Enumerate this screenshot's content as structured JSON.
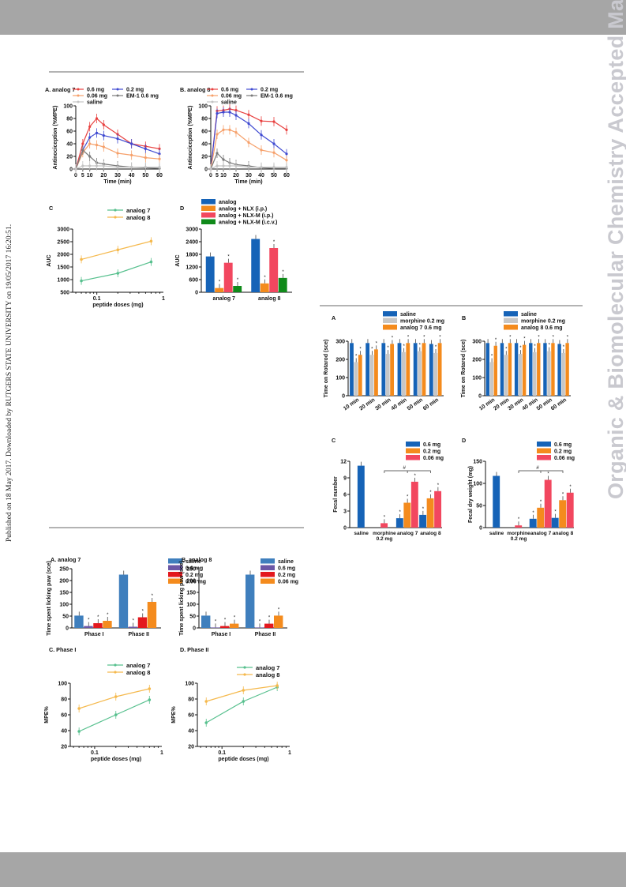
{
  "side_note": "Published on 18 May 2017. Downloaded by RUTGERS STATE UNIVERSITY on 19/05/2017 16:20:51.",
  "watermark": "Organic & Biomolecular Chemistry Accepted Manuscript",
  "colors": {
    "c06": "#e8403f",
    "c02": "#3e49d1",
    "c006": "#f6a06a",
    "cem1": "#7a7a7a",
    "csal": "#c4c4c4",
    "green": "#57c08e",
    "yellow": "#f5b94d",
    "blue": "#1663b7",
    "orange": "#f48b1d",
    "pink": "#f2475f",
    "dkgreen": "#108a1a",
    "gray": "#c7c7c7",
    "purple": "#6b57a6",
    "red": "#e3181e",
    "steel": "#3f7fbd"
  },
  "chart_data": [
    {
      "id": "figA1",
      "type": "line",
      "title": "A. analog 7",
      "xlabel": "Time (min)",
      "ylabel": "Antinociception (%MPE)",
      "xlim": [
        0,
        60
      ],
      "ylim": [
        0,
        100
      ],
      "xticks": [
        0,
        5,
        10,
        20,
        30,
        40,
        50,
        60
      ],
      "yticks": [
        0,
        20,
        40,
        60,
        80,
        100
      ],
      "legend": [
        "0.6   mg",
        "0.2   mg",
        "0.06 mg",
        "EM-1 0.6 mg",
        "saline"
      ],
      "x": [
        0,
        5,
        10,
        15,
        20,
        30,
        40,
        50,
        60
      ],
      "series": [
        {
          "name": "0.6   mg",
          "values": [
            0,
            40,
            67,
            80,
            70,
            55,
            40,
            36,
            32
          ]
        },
        {
          "name": "0.2   mg",
          "values": [
            0,
            30,
            50,
            57,
            53,
            48,
            40,
            32,
            24
          ]
        },
        {
          "name": "0.06 mg",
          "values": [
            0,
            26,
            40,
            38,
            35,
            25,
            22,
            18,
            16
          ]
        },
        {
          "name": "EM-1 0.6 mg",
          "values": [
            0,
            30,
            20,
            10,
            8,
            5,
            3,
            2,
            1
          ]
        },
        {
          "name": "saline",
          "values": [
            0,
            5,
            5,
            5,
            5,
            3,
            3,
            3,
            3
          ]
        }
      ]
    },
    {
      "id": "figB1",
      "type": "line",
      "title": "B. analog 8",
      "xlabel": "Time (min)",
      "ylabel": "Antinociception (%MPE)",
      "xlim": [
        0,
        60
      ],
      "ylim": [
        0,
        100
      ],
      "xticks": [
        0,
        5,
        10,
        20,
        30,
        40,
        50,
        60
      ],
      "yticks": [
        0,
        20,
        40,
        60,
        80,
        100
      ],
      "legend": [
        "0.6   mg",
        "0.2   mg",
        "0.06 mg",
        "EM-1 0.6 mg",
        "saline"
      ],
      "x": [
        0,
        5,
        10,
        15,
        20,
        30,
        40,
        50,
        60
      ],
      "series": [
        {
          "name": "0.6   mg",
          "values": [
            0,
            92,
            93,
            95,
            93,
            86,
            76,
            75,
            62
          ]
        },
        {
          "name": "0.2   mg",
          "values": [
            0,
            88,
            90,
            90,
            85,
            72,
            54,
            40,
            24
          ]
        },
        {
          "name": "0.06 mg",
          "values": [
            0,
            55,
            62,
            62,
            58,
            42,
            30,
            26,
            14
          ]
        },
        {
          "name": "EM-1 0.6 mg",
          "values": [
            0,
            25,
            15,
            10,
            7,
            5,
            2,
            1,
            1
          ]
        },
        {
          "name": "saline",
          "values": [
            0,
            5,
            5,
            5,
            5,
            3,
            3,
            3,
            3
          ]
        }
      ]
    },
    {
      "id": "figC1",
      "type": "line",
      "title": "C",
      "xlabel": "peptide doses (mg)",
      "ylabel": "AUC",
      "ylim": [
        500,
        3000
      ],
      "xscale": "log",
      "yticks": [
        500,
        1000,
        1500,
        2000,
        2500,
        3000
      ],
      "xtick_labels": [
        "0.1",
        "1"
      ],
      "legend": [
        "analog 7",
        "analog 8"
      ],
      "x": [
        0.06,
        0.2,
        0.6
      ],
      "series": [
        {
          "name": "analog 7",
          "values": [
            950,
            1250,
            1700
          ]
        },
        {
          "name": "analog 8",
          "values": [
            1800,
            2180,
            2520
          ]
        }
      ]
    },
    {
      "id": "figD1",
      "type": "bar",
      "title": "D",
      "ylabel": "AUC",
      "ylim": [
        0,
        3000
      ],
      "yticks": [
        0,
        600,
        1200,
        1800,
        2400,
        3000
      ],
      "categories": [
        "analog 7",
        "analog 8"
      ],
      "legend": [
        "analog",
        "analog + NLX (i.p.)",
        "analog + NLX-M (i.p.)",
        "analog + NLX-M (i.c.v.)"
      ],
      "series": [
        {
          "name": "analog",
          "values": [
            1700,
            2530
          ]
        },
        {
          "name": "analog + NLX (i.p.)",
          "values": [
            200,
            420
          ]
        },
        {
          "name": "analog + NLX-M (i.p.)",
          "values": [
            1400,
            2100
          ]
        },
        {
          "name": "analog + NLX-M (i.c.v.)",
          "values": [
            300,
            680
          ]
        }
      ],
      "star": "*"
    },
    {
      "id": "figA2",
      "type": "bar",
      "title": "A",
      "ylabel": "Time on Rotarod (sce)",
      "ylim": [
        0,
        300
      ],
      "yticks": [
        0,
        100,
        200,
        300
      ],
      "categories": [
        "10 min",
        "20 min",
        "30 min",
        "40 min",
        "50 min",
        "60 min"
      ],
      "legend": [
        "saline",
        "morphine 0.2 mg",
        "analog 7    0.6 mg"
      ],
      "series": [
        {
          "name": "saline",
          "values": [
            290,
            290,
            290,
            290,
            290,
            285
          ]
        },
        {
          "name": "morphine 0.2 mg",
          "values": [
            185,
            225,
            230,
            240,
            245,
            235
          ]
        },
        {
          "name": "analog 7    0.6 mg",
          "values": [
            225,
            255,
            285,
            290,
            290,
            290
          ]
        }
      ],
      "star": "*"
    },
    {
      "id": "figB2",
      "type": "bar",
      "title": "B",
      "ylabel": "Time on Rotarod (sce)",
      "ylim": [
        0,
        300
      ],
      "yticks": [
        0,
        100,
        200,
        300
      ],
      "categories": [
        "10 min",
        "20 min",
        "30 min",
        "40 min",
        "50 min",
        "60 min"
      ],
      "legend": [
        "saline",
        "morphine 0.2 mg",
        "analog 8    0.6 mg"
      ],
      "series": [
        {
          "name": "saline",
          "values": [
            290,
            290,
            290,
            290,
            290,
            285
          ]
        },
        {
          "name": "morphine 0.2 mg",
          "values": [
            185,
            225,
            230,
            240,
            245,
            235
          ]
        },
        {
          "name": "analog 8    0.6 mg",
          "values": [
            275,
            290,
            280,
            290,
            290,
            290
          ]
        }
      ],
      "star": "*"
    },
    {
      "id": "figC2",
      "type": "bar",
      "title": "C",
      "ylabel": "Fecal number",
      "ylim": [
        0,
        12
      ],
      "yticks": [
        0,
        3,
        6,
        9,
        12
      ],
      "groups": [
        {
          "label": "saline",
          "bars": [
            {
              "series": "0.6   mg",
              "value": 11.2
            }
          ]
        },
        {
          "label": "morphine\n0.2 mg",
          "bars": [
            {
              "series": "0.06 mg",
              "value": 0.8
            }
          ]
        },
        {
          "label": "analog 7",
          "bars": [
            {
              "series": "0.6   mg",
              "value": 1.7
            },
            {
              "series": "0.2   mg",
              "value": 4.5
            },
            {
              "series": "0.06 mg",
              "value": 8.3
            }
          ]
        },
        {
          "label": "analog 8",
          "bars": [
            {
              "series": "0.6   mg",
              "value": 2.3
            },
            {
              "series": "0.2   mg",
              "value": 5.3
            },
            {
              "series": "0.06 mg",
              "value": 6.6
            }
          ]
        }
      ],
      "legend": [
        "0.6   mg",
        "0.2   mg",
        "0.06 mg"
      ],
      "hash": "#",
      "star": "*"
    },
    {
      "id": "figD2",
      "type": "bar",
      "title": "D",
      "ylabel": "Fecal dry weight (mg)",
      "ylim": [
        0,
        150
      ],
      "yticks": [
        0,
        50,
        100,
        150
      ],
      "groups": [
        {
          "label": "saline",
          "bars": [
            {
              "series": "0.6   mg",
              "value": 117
            }
          ]
        },
        {
          "label": "morphine\n0.2 mg",
          "bars": [
            {
              "series": "0.06 mg",
              "value": 5
            }
          ]
        },
        {
          "label": "analog 7",
          "bars": [
            {
              "series": "0.6   mg",
              "value": 20
            },
            {
              "series": "0.2   mg",
              "value": 45
            },
            {
              "series": "0.06 mg",
              "value": 108
            }
          ]
        },
        {
          "label": "analog 8",
          "bars": [
            {
              "series": "0.6   mg",
              "value": 22
            },
            {
              "series": "0.2   mg",
              "value": 62
            },
            {
              "series": "0.06 mg",
              "value": 79
            }
          ]
        }
      ],
      "legend": [
        "0.6   mg",
        "0.2   mg",
        "0.06 mg"
      ],
      "hash": "#",
      "star": "*"
    },
    {
      "id": "figA3",
      "type": "bar",
      "title": "A. analog 7",
      "ylabel": "Time spent licking paw (sce)",
      "ylim": [
        0,
        250
      ],
      "yticks": [
        0,
        50,
        100,
        150,
        200,
        250
      ],
      "categories": [
        "Phase I",
        "Phase II"
      ],
      "legend": [
        "saline",
        "0.6 mg",
        "0.2 mg",
        "0.06 mg"
      ],
      "series": [
        {
          "name": "saline",
          "values": [
            52,
            225
          ]
        },
        {
          "name": "0.6 mg",
          "values": [
            8,
            5
          ]
        },
        {
          "name": "0.2 mg",
          "values": [
            20,
            45
          ]
        },
        {
          "name": "0.06 mg",
          "values": [
            30,
            110
          ]
        }
      ],
      "star": "*"
    },
    {
      "id": "figB3",
      "type": "bar",
      "title": "B. analog 8",
      "ylabel": "Time spent licking paw (sce)",
      "ylim": [
        0,
        250
      ],
      "yticks": [
        0,
        50,
        100,
        150,
        200,
        250
      ],
      "categories": [
        "Phase I",
        "Phase II"
      ],
      "legend": [
        "saline",
        "0.6 mg",
        "0.2 mg",
        "0.06 mg"
      ],
      "series": [
        {
          "name": "saline",
          "values": [
            52,
            225
          ]
        },
        {
          "name": "0.6 mg",
          "values": [
            2,
            2
          ]
        },
        {
          "name": "0.2 mg",
          "values": [
            8,
            18
          ]
        },
        {
          "name": "0.06 mg",
          "values": [
            18,
            52
          ]
        }
      ],
      "star": "*"
    },
    {
      "id": "figC3",
      "type": "line",
      "title": "C. Phase I",
      "xlabel": "peptide doses (mg)",
      "ylabel": "MPE%",
      "ylim": [
        20,
        100
      ],
      "xscale": "log",
      "yticks": [
        20,
        40,
        60,
        80,
        100
      ],
      "xtick_labels": [
        "0.1",
        "1"
      ],
      "legend": [
        "analog 7",
        "analog 8"
      ],
      "x": [
        0.06,
        0.2,
        0.6
      ],
      "series": [
        {
          "name": "analog 7",
          "values": [
            39,
            60,
            79
          ]
        },
        {
          "name": "analog 8",
          "values": [
            68,
            83,
            93
          ]
        }
      ]
    },
    {
      "id": "figD3",
      "type": "line",
      "title": "D. Phase II",
      "xlabel": "peptide doses (mg)",
      "ylabel": "MPE%",
      "ylim": [
        20,
        100
      ],
      "xscale": "log",
      "yticks": [
        20,
        40,
        60,
        80,
        100
      ],
      "xtick_labels": [
        "0.1",
        "1"
      ],
      "legend": [
        "analog 7",
        "analog 8"
      ],
      "x": [
        0.06,
        0.2,
        0.6
      ],
      "series": [
        {
          "name": "analog 7",
          "values": [
            50,
            77,
            95
          ]
        },
        {
          "name": "analog 8",
          "values": [
            77,
            91,
            97
          ]
        }
      ]
    }
  ]
}
